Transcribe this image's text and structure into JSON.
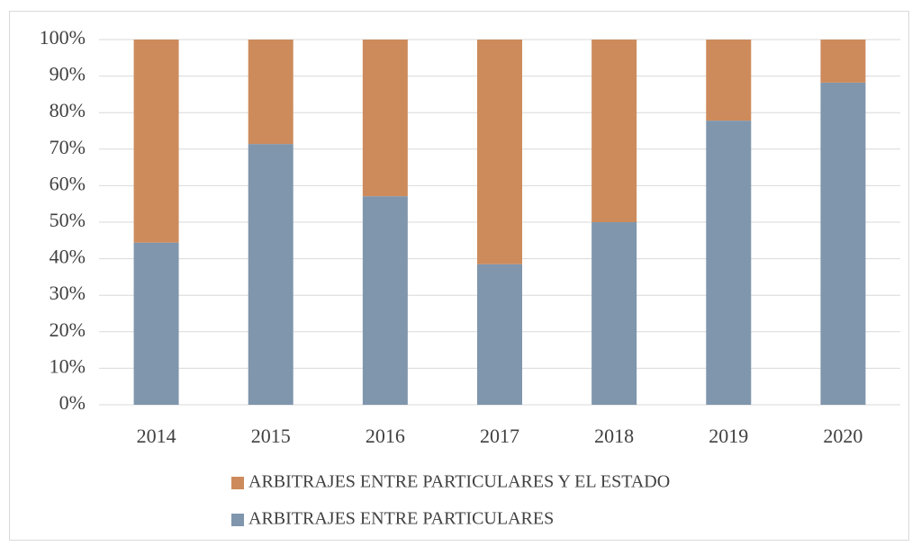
{
  "chart_data": {
    "type": "stacked_bar",
    "categories": [
      "2014",
      "2015",
      "2016",
      "2017",
      "2018",
      "2019",
      "2020"
    ],
    "series": [
      {
        "name": "ARBITRAJES ENTRE PARTICULARES",
        "color": "#7f96ad",
        "values": [
          44.4,
          71.4,
          57.1,
          38.5,
          50,
          77.8,
          88.2
        ]
      },
      {
        "name": "ARBITRAJES ENTRE PARTICULARES Y EL ESTADO",
        "color": "#cd8b5c",
        "values": [
          55.6,
          28.6,
          42.9,
          61.5,
          50,
          22.2,
          11.8
        ]
      }
    ],
    "ylim": [
      0,
      100
    ],
    "yticks": [
      {
        "value": 0,
        "label": "0%"
      },
      {
        "value": 10,
        "label": "10%"
      },
      {
        "value": 20,
        "label": "20%"
      },
      {
        "value": 30,
        "label": "30%"
      },
      {
        "value": 40,
        "label": "40%"
      },
      {
        "value": 50,
        "label": "50%"
      },
      {
        "value": 60,
        "label": "60%"
      },
      {
        "value": 70,
        "label": "70%"
      },
      {
        "value": 80,
        "label": "80%"
      },
      {
        "value": 90,
        "label": "90%"
      },
      {
        "value": 100,
        "label": "100%"
      }
    ],
    "grid": true,
    "legend": "bottom"
  }
}
